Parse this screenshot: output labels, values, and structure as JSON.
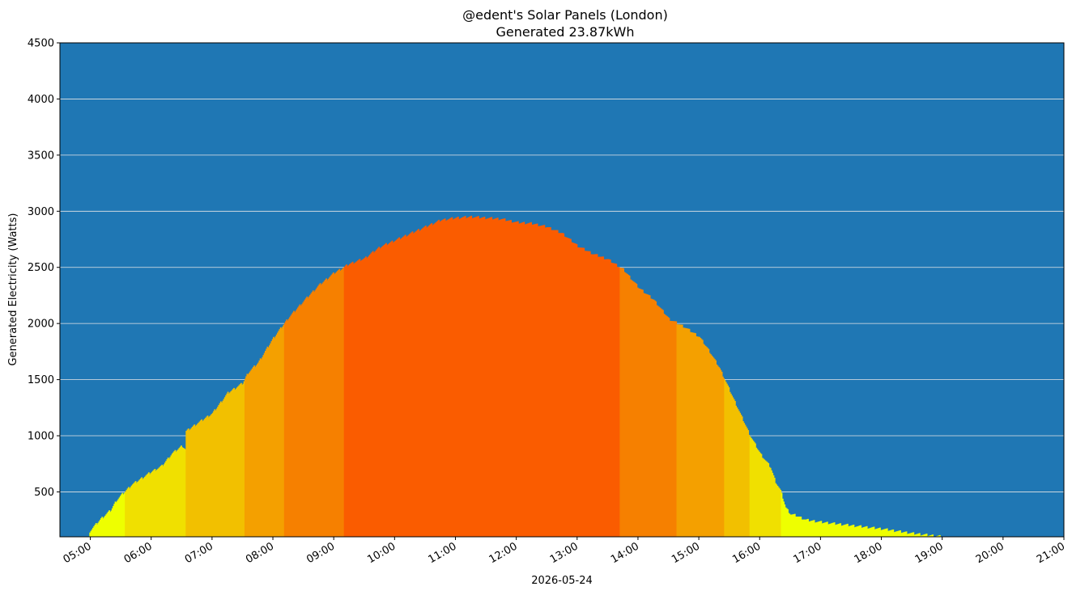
{
  "chart_data": {
    "type": "bar",
    "title": "@edent's Solar Panels (London)",
    "subtitle": "Generated 23.87kWh",
    "xlabel": "2026-05-24",
    "ylabel": "Generated Electricity (Watts)",
    "ylim": [
      100,
      4500
    ],
    "xlim": [
      "04:30",
      "21:00"
    ],
    "grid": "horizontal",
    "background_color": "#1f77b4",
    "yticks": [
      500,
      1000,
      1500,
      2000,
      2500,
      3000,
      3500,
      4000,
      4500
    ],
    "xticks": [
      "05:00",
      "06:00",
      "07:00",
      "08:00",
      "09:00",
      "10:00",
      "11:00",
      "12:00",
      "13:00",
      "14:00",
      "15:00",
      "16:00",
      "17:00",
      "18:00",
      "19:00",
      "20:00",
      "21:00"
    ],
    "color_bands": [
      {
        "min": 0,
        "max": 500,
        "color": "#eeff00"
      },
      {
        "min": 500,
        "max": 1000,
        "color": "#f0e000"
      },
      {
        "min": 1000,
        "max": 1500,
        "color": "#f2c000"
      },
      {
        "min": 1500,
        "max": 2000,
        "color": "#f4a000"
      },
      {
        "min": 2000,
        "max": 2500,
        "color": "#f68000"
      },
      {
        "min": 2500,
        "max": 3000,
        "color": "#fa5c00"
      }
    ],
    "profile": {
      "x": [
        "04:59",
        "05:10",
        "05:20",
        "05:25",
        "05:30",
        "05:40",
        "05:50",
        "06:00",
        "06:10",
        "06:20",
        "06:30",
        "06:33",
        "06:34",
        "06:45",
        "07:00",
        "07:15",
        "07:30",
        "07:35",
        "07:45",
        "08:00",
        "08:15",
        "08:30",
        "08:45",
        "09:00",
        "09:15",
        "09:30",
        "09:45",
        "10:00",
        "10:15",
        "10:30",
        "10:45",
        "11:00",
        "11:15",
        "11:30",
        "11:45",
        "12:00",
        "12:15",
        "12:30",
        "12:45",
        "13:00",
        "13:15",
        "13:30",
        "13:45",
        "14:00",
        "14:15",
        "14:30",
        "14:45",
        "15:00",
        "15:10",
        "15:20",
        "15:30",
        "15:40",
        "15:50",
        "16:00",
        "16:10",
        "16:15",
        "16:20",
        "16:25",
        "16:30",
        "16:35",
        "16:40",
        "16:45",
        "17:00",
        "17:30",
        "18:00",
        "18:30",
        "19:00",
        "19:02"
      ],
      "y": [
        150,
        260,
        340,
        420,
        470,
        560,
        620,
        680,
        730,
        840,
        910,
        880,
        1040,
        1110,
        1200,
        1380,
        1470,
        1560,
        1650,
        1870,
        2050,
        2200,
        2340,
        2450,
        2530,
        2580,
        2680,
        2740,
        2800,
        2860,
        2920,
        2940,
        2950,
        2940,
        2930,
        2900,
        2890,
        2860,
        2800,
        2690,
        2620,
        2570,
        2480,
        2320,
        2210,
        2040,
        1970,
        1880,
        1750,
        1600,
        1400,
        1200,
        1000,
        840,
        720,
        590,
        510,
        360,
        300,
        290,
        270,
        250,
        230,
        200,
        170,
        130,
        100,
        100
      ]
    }
  }
}
